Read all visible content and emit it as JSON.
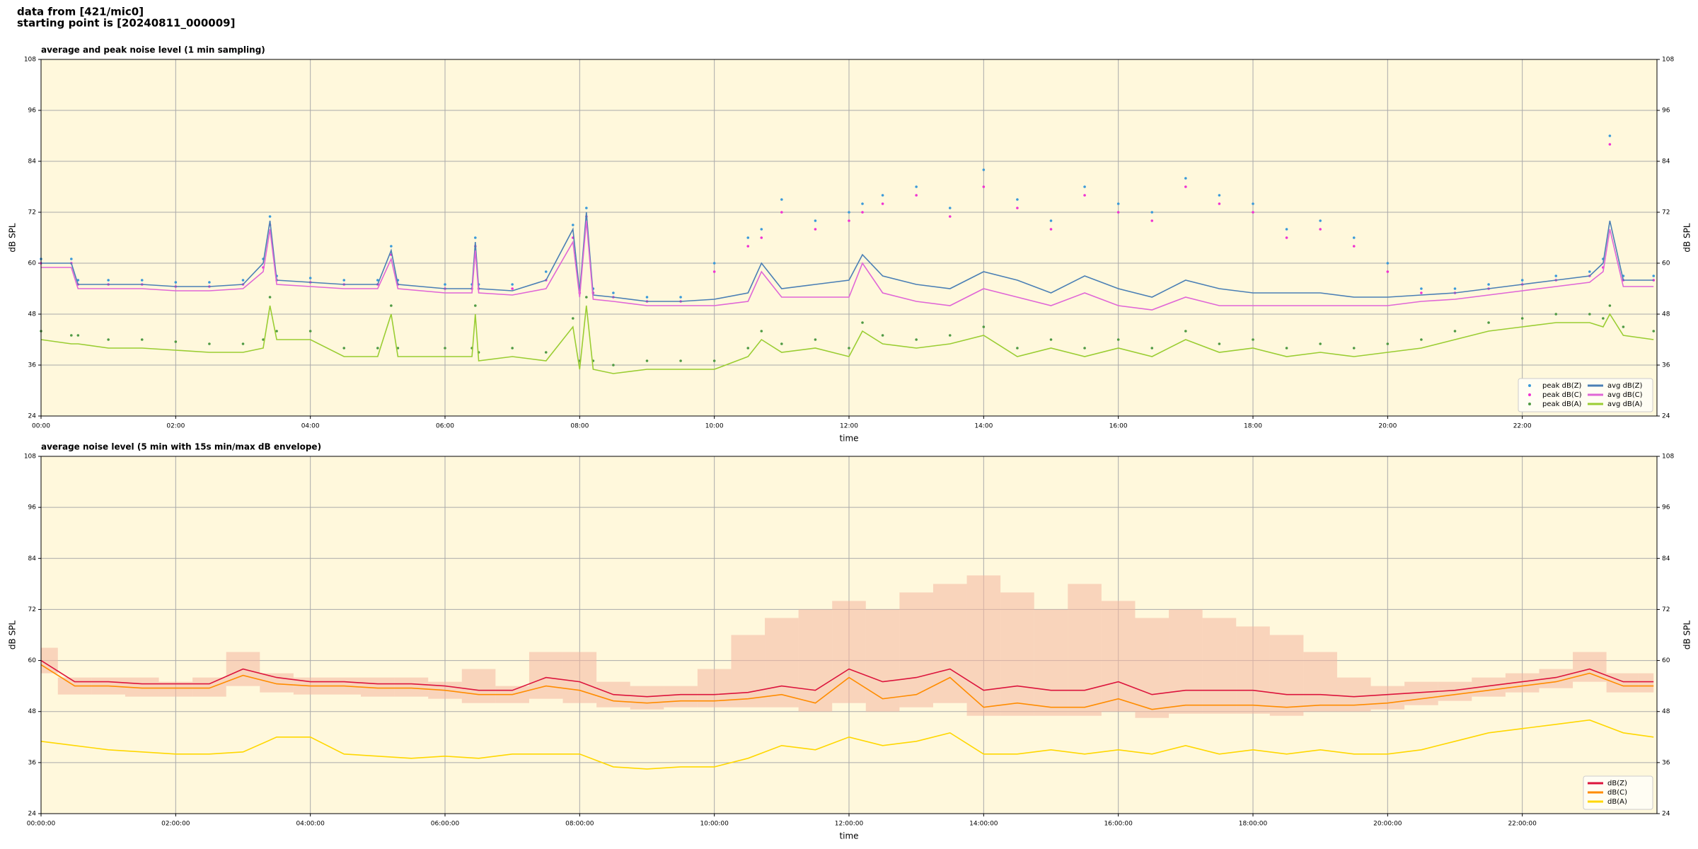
{
  "header": {
    "lines": [
      "data from [421/mic0]",
      "starting point is [20240811_000009]"
    ]
  },
  "chart_data": [
    {
      "type": "line",
      "title": "average and peak noise level (1 min sampling)",
      "x_label": "time",
      "y_label": "dB SPL",
      "background": "#fff8dc",
      "grid": true,
      "legend": "lower right",
      "legend_columns": 2,
      "xlim": [
        0,
        24
      ],
      "ylim": [
        24,
        108
      ],
      "yticks": [
        24,
        36,
        48,
        60,
        72,
        84,
        96,
        108
      ],
      "xticks": [
        {
          "value": 0,
          "label": "00:00"
        },
        {
          "value": 2,
          "label": "02:00"
        },
        {
          "value": 4,
          "label": "04:00"
        },
        {
          "value": 6,
          "label": "06:00"
        },
        {
          "value": 8,
          "label": "08:00"
        },
        {
          "value": 10,
          "label": "10:00"
        },
        {
          "value": 12,
          "label": "12:00"
        },
        {
          "value": 14,
          "label": "14:00"
        },
        {
          "value": 16,
          "label": "16:00"
        },
        {
          "value": 18,
          "label": "18:00"
        },
        {
          "value": 20,
          "label": "20:00"
        },
        {
          "value": 22,
          "label": "22:00"
        }
      ],
      "x": [
        0,
        0.45,
        0.55,
        1,
        1.5,
        2,
        2.5,
        3,
        3.3,
        3.4,
        3.5,
        4,
        4.5,
        5,
        5.2,
        5.3,
        6,
        6.4,
        6.45,
        6.5,
        7,
        7.5,
        7.9,
        8,
        8.1,
        8.2,
        8.5,
        9,
        9.5,
        10,
        10.5,
        10.7,
        11,
        11.5,
        12,
        12.2,
        12.5,
        13,
        13.5,
        14,
        14.5,
        15,
        15.5,
        16,
        16.5,
        17,
        17.5,
        18,
        18.5,
        19,
        19.5,
        20,
        20.5,
        21,
        21.5,
        22,
        22.5,
        23,
        23.2,
        23.3,
        23.5,
        23.95
      ],
      "series": [
        {
          "name": "peak dB(Z)",
          "style": "dots",
          "color": "#3b9ad9",
          "values": [
            61,
            61,
            56,
            56,
            56,
            55.5,
            55.5,
            56,
            61,
            71,
            57,
            56.5,
            56,
            56,
            64,
            56,
            55,
            55,
            66,
            55,
            55,
            58,
            69,
            54,
            73,
            54,
            53,
            52,
            52,
            60,
            66,
            68,
            75,
            70,
            72,
            74,
            76,
            78,
            73,
            82,
            75,
            70,
            78,
            74,
            72,
            80,
            76,
            74,
            68,
            70,
            66,
            60,
            54,
            54,
            55,
            56,
            57,
            58,
            61,
            90,
            57,
            57
          ]
        },
        {
          "name": "peak dB(C)",
          "style": "dots",
          "color": "#f032d2",
          "values": [
            60,
            60,
            55,
            55,
            55,
            54.5,
            54.5,
            55,
            59,
            69,
            56,
            55.5,
            55,
            55,
            62,
            55,
            54,
            54,
            64,
            54,
            54,
            56,
            66,
            53,
            71,
            53,
            52,
            51,
            51,
            58,
            64,
            66,
            72,
            68,
            70,
            72,
            74,
            76,
            71,
            78,
            73,
            68,
            76,
            72,
            70,
            78,
            74,
            72,
            66,
            68,
            64,
            58,
            53,
            53,
            54,
            55,
            56,
            57,
            59,
            88,
            56,
            56
          ]
        },
        {
          "name": "peak dB(A)",
          "style": "dots",
          "color": "#4f9a44",
          "values": [
            44,
            43,
            43,
            42,
            42,
            41.5,
            41,
            41,
            42,
            52,
            44,
            44,
            40,
            40,
            50,
            40,
            40,
            40,
            50,
            39,
            40,
            39,
            47,
            37,
            52,
            37,
            36,
            37,
            37,
            37,
            40,
            44,
            41,
            42,
            40,
            46,
            43,
            42,
            43,
            45,
            40,
            42,
            40,
            42,
            40,
            44,
            41,
            42,
            40,
            41,
            40,
            41,
            42,
            44,
            46,
            47,
            48,
            48,
            47,
            50,
            45,
            44
          ]
        },
        {
          "name": "avg dB(Z)",
          "style": "line",
          "color": "#4a7fb5",
          "values": [
            60,
            60,
            55,
            55,
            55,
            54.5,
            54.5,
            55,
            60,
            70,
            56,
            55.5,
            55,
            55,
            63,
            55,
            54,
            54,
            65,
            54,
            53.5,
            56,
            68,
            53,
            72,
            52.5,
            52,
            51,
            51,
            51.5,
            53,
            60,
            54,
            55,
            56,
            62,
            57,
            55,
            54,
            58,
            56,
            53,
            57,
            54,
            52,
            56,
            54,
            53,
            53,
            53,
            52,
            52,
            52.5,
            53,
            54,
            55,
            56,
            57,
            60,
            70,
            56,
            56
          ]
        },
        {
          "name": "avg dB(C)",
          "style": "line",
          "color": "#e066d6",
          "values": [
            59,
            59,
            54,
            54,
            54,
            53.5,
            53.5,
            54,
            58,
            68,
            55,
            54.5,
            54,
            54,
            61,
            54,
            53,
            53,
            63,
            53,
            52.5,
            54,
            65,
            52,
            70,
            51.5,
            51,
            50,
            50,
            50,
            51,
            58,
            52,
            52,
            52,
            60,
            53,
            51,
            50,
            54,
            52,
            50,
            53,
            50,
            49,
            52,
            50,
            50,
            50,
            50,
            50,
            50,
            51,
            51.5,
            52.5,
            53.5,
            54.5,
            55.5,
            58,
            68,
            54.5,
            54.5
          ]
        },
        {
          "name": "avg dB(A)",
          "style": "line",
          "color": "#9acd32",
          "values": [
            42,
            41,
            41,
            40,
            40,
            39.5,
            39,
            39,
            40,
            50,
            42,
            42,
            38,
            38,
            48,
            38,
            38,
            38,
            48,
            37,
            38,
            37,
            45,
            35,
            50,
            35,
            34,
            35,
            35,
            35,
            38,
            42,
            39,
            40,
            38,
            44,
            41,
            40,
            41,
            43,
            38,
            40,
            38,
            40,
            38,
            42,
            39,
            40,
            38,
            39,
            38,
            39,
            40,
            42,
            44,
            45,
            46,
            46,
            45,
            48,
            43,
            42
          ]
        }
      ]
    },
    {
      "type": "line",
      "title": "average noise level (5 min with 15s min/max dB envelope)",
      "x_label": "time",
      "y_label": "dB SPL",
      "background": "#fff8dc",
      "grid": true,
      "legend": "lower right",
      "legend_columns": 1,
      "xlim": [
        0,
        24
      ],
      "ylim": [
        24,
        108
      ],
      "yticks": [
        24,
        36,
        48,
        60,
        72,
        84,
        96,
        108
      ],
      "xticks": [
        {
          "value": 0,
          "label": "00:00:00"
        },
        {
          "value": 2,
          "label": "02:00:00"
        },
        {
          "value": 4,
          "label": "04:00:00"
        },
        {
          "value": 6,
          "label": "06:00:00"
        },
        {
          "value": 8,
          "label": "08:00:00"
        },
        {
          "value": 10,
          "label": "10:00:00"
        },
        {
          "value": 12,
          "label": "12:00:00"
        },
        {
          "value": 14,
          "label": "14:00:00"
        },
        {
          "value": 16,
          "label": "16:00:00"
        },
        {
          "value": 18,
          "label": "18:00:00"
        },
        {
          "value": 20,
          "label": "20:00:00"
        },
        {
          "value": 22,
          "label": "22:00:00"
        }
      ],
      "x": [
        0,
        0.5,
        1,
        1.5,
        2,
        2.5,
        3,
        3.5,
        4,
        4.5,
        5,
        5.5,
        6,
        6.5,
        7,
        7.5,
        8,
        8.5,
        9,
        9.5,
        10,
        10.5,
        11,
        11.5,
        12,
        12.5,
        13,
        13.5,
        14,
        14.5,
        15,
        15.5,
        16,
        16.5,
        17,
        17.5,
        18,
        18.5,
        19,
        19.5,
        20,
        20.5,
        21,
        21.5,
        22,
        22.5,
        23,
        23.5,
        23.95
      ],
      "envelope": {
        "color": "#f4b6a0",
        "upper": [
          63,
          56,
          56,
          56,
          55,
          56,
          62,
          57,
          56,
          56,
          56,
          56,
          55,
          58,
          54,
          62,
          62,
          55,
          54,
          54,
          58,
          66,
          70,
          72,
          74,
          72,
          76,
          78,
          80,
          76,
          72,
          78,
          74,
          70,
          72,
          70,
          68,
          66,
          62,
          56,
          54,
          55,
          55,
          56,
          57,
          58,
          62,
          57,
          57
        ],
        "lower": [
          57,
          52,
          52,
          51.5,
          51.5,
          51.5,
          54,
          52.5,
          52,
          52,
          51.5,
          51.5,
          51,
          50,
          50,
          51,
          50,
          49,
          48.5,
          49,
          49,
          49,
          49,
          48,
          50,
          48,
          49,
          50,
          47,
          47,
          47,
          47,
          48,
          46.5,
          47.5,
          47.5,
          47.5,
          47,
          48,
          48,
          48.5,
          49.5,
          50.5,
          51.5,
          52.5,
          53.5,
          55,
          52.5,
          52.5
        ]
      },
      "series": [
        {
          "name": "dB(Z)",
          "style": "line",
          "color": "#dc143c",
          "values": [
            60,
            55,
            55,
            54.5,
            54.5,
            54.5,
            58,
            56,
            55,
            55,
            54.5,
            54.5,
            54,
            53,
            53,
            56,
            55,
            52,
            51.5,
            52,
            52,
            52.5,
            54,
            53,
            58,
            55,
            56,
            58,
            53,
            54,
            53,
            53,
            55,
            52,
            53,
            53,
            53,
            52,
            52,
            51.5,
            52,
            52.5,
            53,
            54,
            55,
            56,
            58,
            55,
            55
          ]
        },
        {
          "name": "dB(C)",
          "style": "line",
          "color": "#ff8c00",
          "values": [
            59,
            54,
            54,
            53.5,
            53.5,
            53.5,
            56.5,
            54.5,
            54,
            54,
            53.5,
            53.5,
            53,
            52,
            52,
            54,
            53,
            50.5,
            50,
            50.5,
            50.5,
            51,
            52,
            50,
            56,
            51,
            52,
            56,
            49,
            50,
            49,
            49,
            51,
            48.5,
            49.5,
            49.5,
            49.5,
            49,
            49.5,
            49.5,
            50,
            51,
            52,
            53,
            54,
            55,
            57,
            54,
            54
          ]
        },
        {
          "name": "dB(A)",
          "style": "line",
          "color": "#ffd700",
          "values": [
            41,
            40,
            39,
            38.5,
            38,
            38,
            38.5,
            42,
            42,
            38,
            37.5,
            37,
            37.5,
            37,
            38,
            38,
            38,
            35,
            34.5,
            35,
            35,
            37,
            40,
            39,
            42,
            40,
            41,
            43,
            38,
            38,
            39,
            38,
            39,
            38,
            40,
            38,
            39,
            38,
            39,
            38,
            38,
            39,
            41,
            43,
            44,
            45,
            46,
            43,
            42
          ]
        }
      ]
    }
  ]
}
